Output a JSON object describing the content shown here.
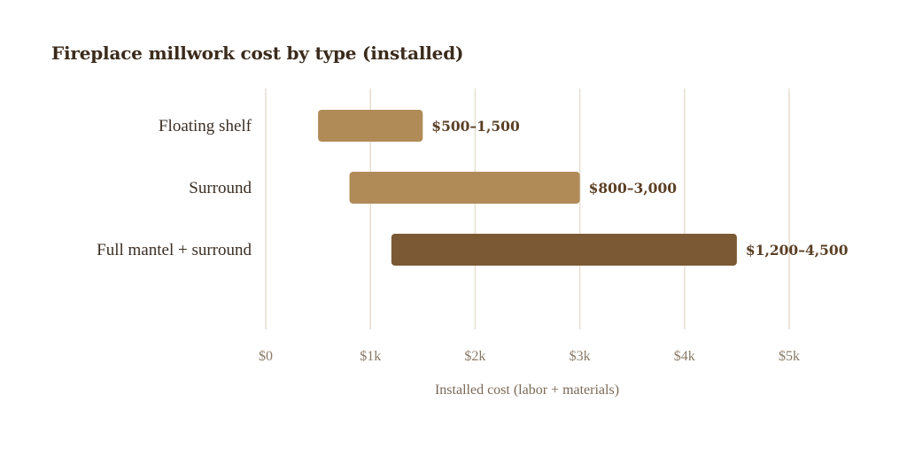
{
  "chart_data": {
    "type": "bar",
    "subtype": "floating-range",
    "orientation": "horizontal",
    "title": "Fireplace millwork cost by type (installed)",
    "xlabel": "Installed cost (labor + materials)",
    "ylabel": "",
    "xlim": [
      0,
      5000
    ],
    "xticks": [
      0,
      1000,
      2000,
      3000,
      4000,
      5000
    ],
    "xtick_labels": [
      "$0",
      "$1k",
      "$2k",
      "$3k",
      "$4k",
      "$5k"
    ],
    "grid": "vertical",
    "categories": [
      "Floating shelf",
      "Surround",
      "Full mantel + surround"
    ],
    "ranges": [
      {
        "low": 500,
        "high": 1500,
        "label": "$500–1,500",
        "color": "#b08b57"
      },
      {
        "low": 800,
        "high": 3000,
        "label": "$800–3,000",
        "color": "#b08b57"
      },
      {
        "low": 1200,
        "high": 4500,
        "label": "$1,200–4,500",
        "color": "#7b5934"
      }
    ]
  },
  "colors": {
    "grid": "#e6dfcf",
    "title": "#3b2b1c"
  }
}
